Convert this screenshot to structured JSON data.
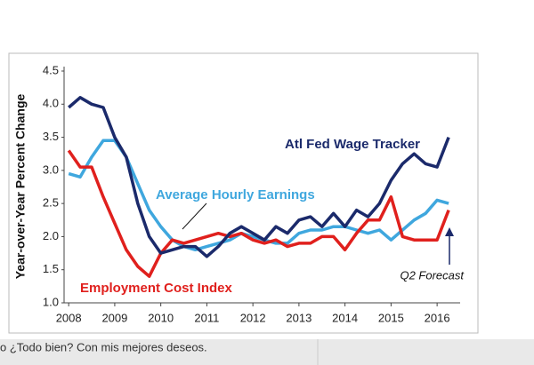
{
  "chart_data": {
    "type": "line",
    "ylabel": "Year-over-Year Percent Change",
    "x": [
      2008,
      2008.25,
      2008.5,
      2008.75,
      2009,
      2009.25,
      2009.5,
      2009.75,
      2010,
      2010.25,
      2010.5,
      2010.75,
      2011,
      2011.25,
      2011.5,
      2011.75,
      2012,
      2012.25,
      2012.5,
      2012.75,
      2013,
      2013.25,
      2013.5,
      2013.75,
      2014,
      2014.25,
      2014.5,
      2014.75,
      2015,
      2015.25,
      2015.5,
      2015.75,
      2016,
      2016.25
    ],
    "series": [
      {
        "name": "Atl Fed Wage Tracker",
        "color": "#1b2a6b",
        "values": [
          3.95,
          4.1,
          4.0,
          3.95,
          3.5,
          3.2,
          2.5,
          2.0,
          1.75,
          1.8,
          1.85,
          1.85,
          1.7,
          1.85,
          2.05,
          2.15,
          2.05,
          1.95,
          2.15,
          2.05,
          2.25,
          2.3,
          2.15,
          2.35,
          2.15,
          2.4,
          2.3,
          2.5,
          2.85,
          3.1,
          3.25,
          3.1,
          3.05,
          3.5
        ]
      },
      {
        "name": "Average Hourly Earnings",
        "color": "#3fa7de",
        "values": [
          2.95,
          2.9,
          3.2,
          3.45,
          3.45,
          3.2,
          2.8,
          2.4,
          2.15,
          1.95,
          1.85,
          1.8,
          1.85,
          1.9,
          1.95,
          2.05,
          2.0,
          1.95,
          1.9,
          1.9,
          2.05,
          2.1,
          2.1,
          2.15,
          2.15,
          2.1,
          2.05,
          2.1,
          1.95,
          2.1,
          2.25,
          2.35,
          2.55,
          2.5
        ]
      },
      {
        "name": "Employment Cost Index",
        "color": "#e0201d",
        "values": [
          3.3,
          3.05,
          3.05,
          2.6,
          2.2,
          1.8,
          1.55,
          1.4,
          1.75,
          1.95,
          1.9,
          1.95,
          2.0,
          2.05,
          2.0,
          2.05,
          1.95,
          1.9,
          1.95,
          1.85,
          1.9,
          1.9,
          2.0,
          2.0,
          1.8,
          2.05,
          2.25,
          2.25,
          2.6,
          2.0,
          1.95,
          1.95,
          1.95,
          2.4
        ]
      }
    ],
    "annotations": [
      "Q2 Forecast"
    ],
    "xlim": [
      2007.9,
      2016.5
    ],
    "xticks": [
      2008,
      2009,
      2010,
      2011,
      2012,
      2013,
      2014,
      2015,
      2016
    ],
    "ylim": [
      1.0,
      4.5
    ],
    "yticks": [
      {
        "value": 1,
        "label": "1.0"
      },
      1.5,
      {
        "value": 2,
        "label": "2.0"
      },
      2.5,
      {
        "value": 3,
        "label": "3.0"
      },
      3.5,
      {
        "value": 4,
        "label": "4.0"
      },
      4.5
    ]
  },
  "footer_text": "o ¿Todo bien? Con mis mejores deseos."
}
